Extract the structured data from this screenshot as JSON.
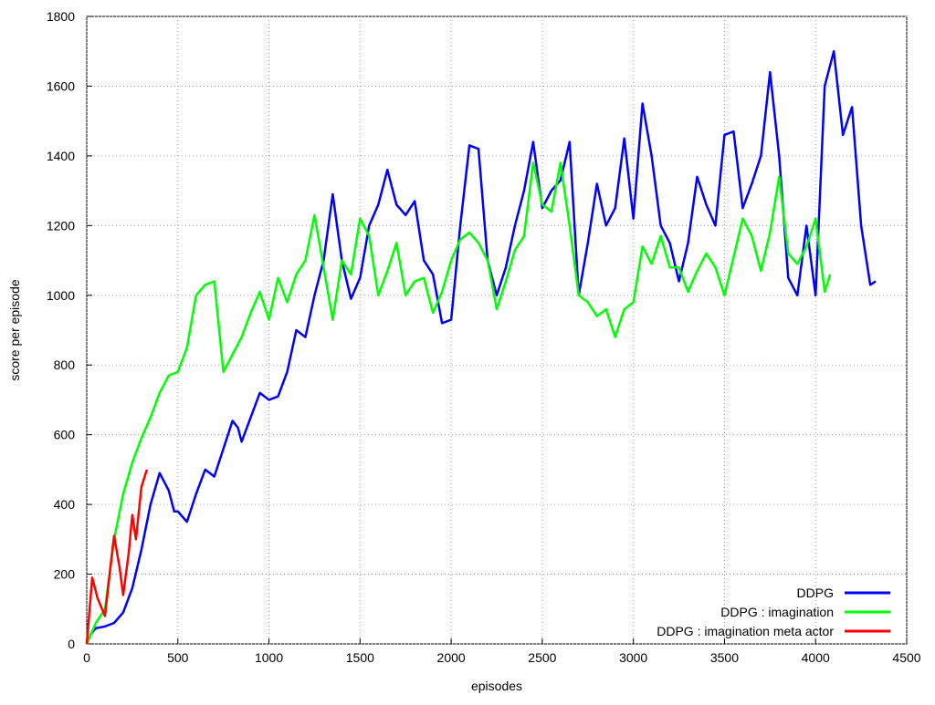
{
  "chart_data": {
    "type": "line",
    "xlabel": "episodes",
    "ylabel": "score per episode",
    "xlim": [
      0,
      4500
    ],
    "ylim": [
      0,
      1800
    ],
    "xticks": [
      0,
      500,
      1000,
      1500,
      2000,
      2500,
      3000,
      3500,
      4000,
      4500
    ],
    "yticks": [
      0,
      200,
      400,
      600,
      800,
      1000,
      1200,
      1400,
      1600,
      1800
    ],
    "grid": true,
    "legend": "bottom-right",
    "series": [
      {
        "name": "DDPG",
        "color": "#0000ff",
        "x": [
          0,
          25,
          50,
          100,
          150,
          200,
          250,
          300,
          350,
          400,
          450,
          480,
          500,
          550,
          600,
          650,
          700,
          750,
          800,
          830,
          850,
          900,
          950,
          1000,
          1050,
          1100,
          1150,
          1200,
          1250,
          1300,
          1350,
          1400,
          1450,
          1500,
          1550,
          1600,
          1650,
          1700,
          1750,
          1800,
          1850,
          1900,
          1950,
          2000,
          2050,
          2100,
          2150,
          2200,
          2250,
          2300,
          2350,
          2400,
          2450,
          2500,
          2550,
          2600,
          2650,
          2700,
          2750,
          2800,
          2850,
          2900,
          2950,
          3000,
          3050,
          3100,
          3150,
          3200,
          3250,
          3300,
          3350,
          3400,
          3450,
          3500,
          3550,
          3600,
          3650,
          3700,
          3750,
          3800,
          3850,
          3900,
          3950,
          4000,
          4050,
          4100,
          4150,
          4200,
          4250,
          4300,
          4330
        ],
        "values": [
          0,
          30,
          45,
          50,
          60,
          90,
          160,
          270,
          400,
          490,
          440,
          380,
          380,
          350,
          430,
          500,
          480,
          560,
          640,
          620,
          580,
          650,
          720,
          700,
          710,
          780,
          900,
          880,
          1000,
          1100,
          1290,
          1100,
          990,
          1050,
          1200,
          1260,
          1360,
          1260,
          1230,
          1270,
          1100,
          1060,
          920,
          930,
          1200,
          1430,
          1420,
          1100,
          1000,
          1080,
          1200,
          1300,
          1440,
          1250,
          1300,
          1330,
          1440,
          1000,
          1150,
          1320,
          1200,
          1250,
          1450,
          1220,
          1550,
          1400,
          1200,
          1150,
          1040,
          1150,
          1340,
          1260,
          1200,
          1460,
          1470,
          1250,
          1320,
          1400,
          1640,
          1400,
          1050,
          1000,
          1200,
          1000,
          1600,
          1700,
          1460,
          1540,
          1200,
          1030,
          1040
        ]
      },
      {
        "name": "DDPG : imagination",
        "color": "#00ff00",
        "x": [
          0,
          50,
          100,
          150,
          200,
          250,
          300,
          350,
          400,
          450,
          500,
          550,
          600,
          650,
          700,
          750,
          800,
          850,
          900,
          950,
          1000,
          1050,
          1100,
          1150,
          1200,
          1250,
          1300,
          1350,
          1400,
          1450,
          1500,
          1550,
          1600,
          1650,
          1700,
          1750,
          1800,
          1850,
          1900,
          1950,
          2000,
          2050,
          2100,
          2150,
          2200,
          2250,
          2300,
          2350,
          2400,
          2450,
          2500,
          2550,
          2600,
          2650,
          2700,
          2750,
          2800,
          2850,
          2900,
          2950,
          3000,
          3050,
          3100,
          3150,
          3200,
          3250,
          3300,
          3350,
          3400,
          3450,
          3500,
          3550,
          3600,
          3650,
          3700,
          3750,
          3800,
          3850,
          3900,
          3950,
          4000,
          4050,
          4080
        ],
        "values": [
          0,
          60,
          100,
          300,
          430,
          520,
          590,
          650,
          720,
          770,
          780,
          850,
          1000,
          1030,
          1040,
          780,
          830,
          880,
          950,
          1010,
          930,
          1050,
          980,
          1060,
          1100,
          1230,
          1080,
          930,
          1100,
          1060,
          1220,
          1170,
          1000,
          1070,
          1150,
          1000,
          1040,
          1050,
          950,
          1010,
          1100,
          1160,
          1180,
          1150,
          1100,
          960,
          1040,
          1130,
          1170,
          1380,
          1260,
          1240,
          1380,
          1200,
          1000,
          980,
          940,
          960,
          880,
          960,
          980,
          1140,
          1090,
          1170,
          1080,
          1080,
          1010,
          1070,
          1120,
          1080,
          1000,
          1110,
          1220,
          1170,
          1070,
          1180,
          1340,
          1120,
          1090,
          1140,
          1220,
          1010,
          1060
        ]
      },
      {
        "name": "DDPG : imagination meta actor",
        "color": "#ff0000",
        "x": [
          0,
          30,
          60,
          100,
          130,
          150,
          180,
          200,
          230,
          250,
          270,
          300,
          330
        ],
        "values": [
          0,
          190,
          130,
          80,
          220,
          310,
          220,
          140,
          260,
          370,
          300,
          450,
          500
        ]
      }
    ]
  }
}
